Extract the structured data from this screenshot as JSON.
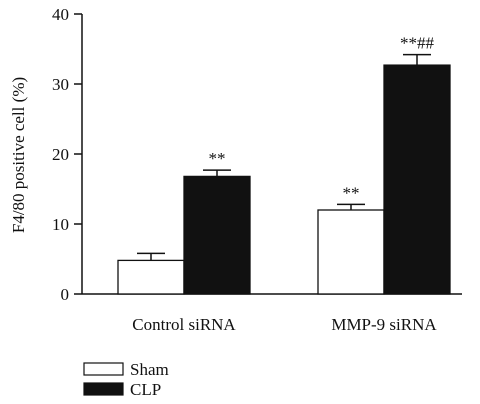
{
  "chart_data": {
    "type": "bar",
    "title": "",
    "xlabel": "",
    "ylabel": "F4/80 positive cell (%)",
    "ylim": [
      0,
      40
    ],
    "yticks": [
      0,
      10,
      20,
      30,
      40
    ],
    "grid": false,
    "legend_position": "bottom-left",
    "categories": [
      "Control siRNA",
      "MMP-9 siRNA"
    ],
    "series": [
      {
        "name": "Sham",
        "fill": "#ffffff",
        "stroke": "#111111",
        "values": [
          4.8,
          12.0
        ],
        "errors": [
          1.0,
          0.8
        ],
        "annotations": [
          "",
          "**"
        ]
      },
      {
        "name": "CLP",
        "fill": "#111111",
        "stroke": "#111111",
        "values": [
          16.8,
          32.7
        ],
        "errors": [
          0.9,
          1.5
        ],
        "annotations": [
          "**",
          "**##"
        ]
      }
    ]
  }
}
